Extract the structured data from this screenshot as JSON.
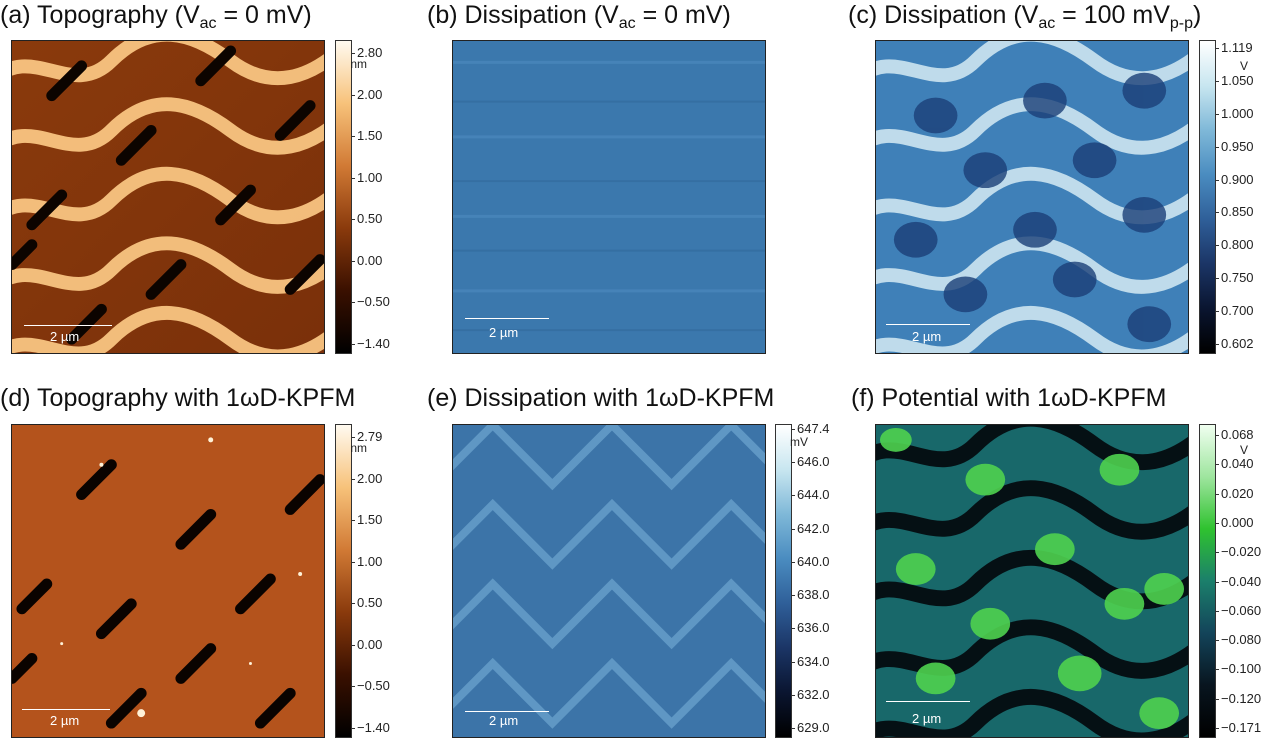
{
  "figure": {
    "panels": [
      {
        "id": "a",
        "title_prefix": "(a) Topography (V",
        "title_sub": "ac",
        "title_suffix": " = 0 mV)",
        "scale_label": "2 µm",
        "colormap": "afmhot",
        "unit": "nm",
        "colorbar_ticks": [
          "2.80",
          "2.00",
          "1.50",
          "1.00",
          "0.50",
          "0.00",
          "−0.50",
          "−1.40"
        ]
      },
      {
        "id": "b",
        "title_prefix": "(b) Dissipation (V",
        "title_sub": "ac",
        "title_suffix": " = 0 mV)",
        "scale_label": "2 µm",
        "colormap": "blue",
        "unit": "",
        "colorbar_ticks": []
      },
      {
        "id": "c",
        "title_prefix": "(c) Dissipation (V",
        "title_sub": "ac",
        "title_suffix": " = 100 mV",
        "title_sub2": "p-p",
        "title_suffix2": ")",
        "scale_label": "2 µm",
        "colormap": "blue",
        "unit": "V",
        "colorbar_ticks": [
          "1.119",
          "1.050",
          "1.000",
          "0.950",
          "0.900",
          "0.850",
          "0.800",
          "0.750",
          "0.700",
          "0.602"
        ]
      },
      {
        "id": "d",
        "title_prefix": "(d) Topography with 1ωD-KPFM",
        "scale_label": "2 µm",
        "colormap": "afmhot",
        "unit": "nm",
        "colorbar_ticks": [
          "2.79",
          "2.00",
          "1.50",
          "1.00",
          "0.50",
          "0.00",
          "−0.50",
          "−1.40"
        ]
      },
      {
        "id": "e",
        "title_prefix": "(e) Dissipation with 1ωD-KPFM",
        "scale_label": "2 µm",
        "colormap": "blue",
        "unit": "mV",
        "colorbar_ticks": [
          "647.4",
          "646.0",
          "644.0",
          "642.0",
          "640.0",
          "638.0",
          "636.0",
          "634.0",
          "632.0",
          "629.0"
        ]
      },
      {
        "id": "f",
        "title_prefix": "(f)  Potential with 1ωD-KPFM",
        "scale_label": "2 µm",
        "colormap": "green",
        "unit": "V",
        "colorbar_ticks": [
          "0.068",
          "0.040",
          "0.020",
          "0.000",
          "−0.020",
          "−0.040",
          "−0.060",
          "−0.080",
          "−0.100",
          "−0.120",
          "−0.171"
        ]
      }
    ],
    "colors": {
      "afmhot_dark": "#1a0800",
      "afmhot_mid": "#b4541c",
      "afmhot_light": "#fff6e0",
      "blue_dark": "#081a3a",
      "blue_mid": "#3f7cb0",
      "blue_light": "#f2f7fb",
      "green_dark": "#03080c",
      "green_mid": "#1a6f6a",
      "green_light": "#dcf5dc"
    }
  }
}
